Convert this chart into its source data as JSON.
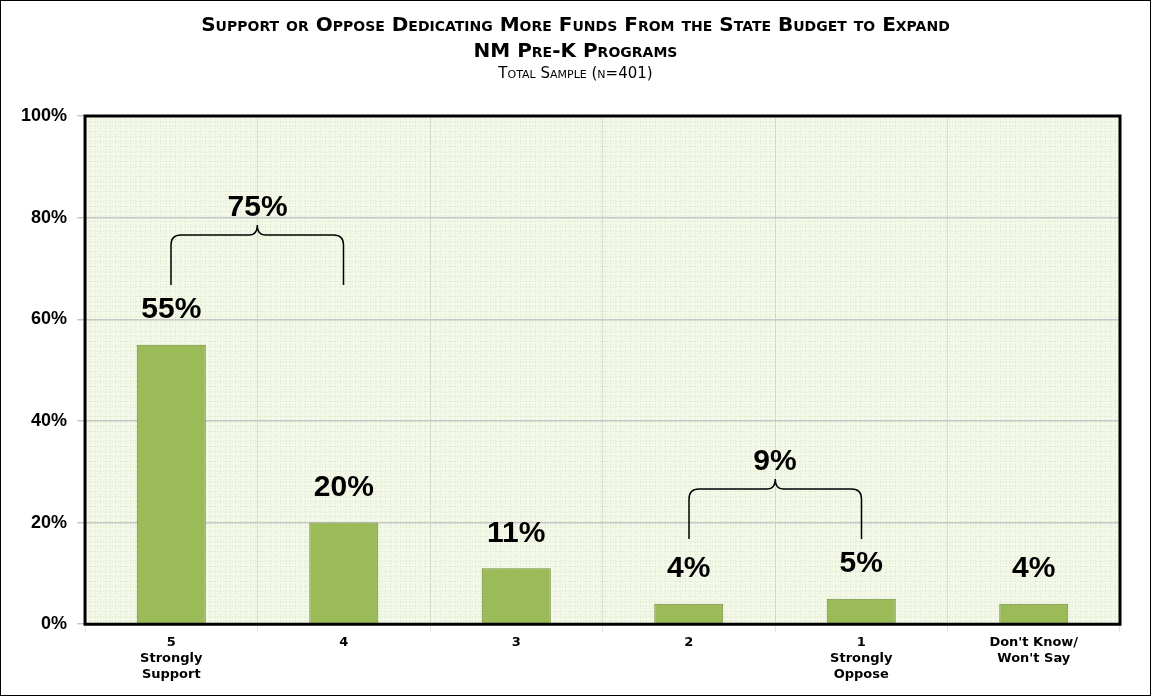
{
  "chart_data": {
    "type": "bar",
    "title": "Support or Oppose Dedicating More Funds From the State Budget to Expand NM Pre-K Programs",
    "subtitle": "Total Sample (n=401)",
    "categories": [
      "5\nStrongly\nSupport",
      "4",
      "3",
      "2",
      "1\nStrongly\nOppose",
      "Don't Know/\nWon't Say"
    ],
    "values": [
      55,
      20,
      11,
      4,
      5,
      4
    ],
    "color": "#9bbb59",
    "ylim": [
      0,
      100
    ],
    "yticks": [
      {
        "value": 0,
        "label": "0%"
      },
      {
        "value": 20,
        "label": "20%"
      },
      {
        "value": 40,
        "label": "40%"
      },
      {
        "value": 60,
        "label": "60%"
      },
      {
        "value": 80,
        "label": "80%"
      },
      {
        "value": 100,
        "label": "100%"
      }
    ],
    "grid": true,
    "legend": false,
    "value_labels": [
      "55%",
      "20%",
      "11%",
      "4%",
      "5%",
      "4%"
    ],
    "annotations": [
      "75%",
      "9%"
    ]
  }
}
